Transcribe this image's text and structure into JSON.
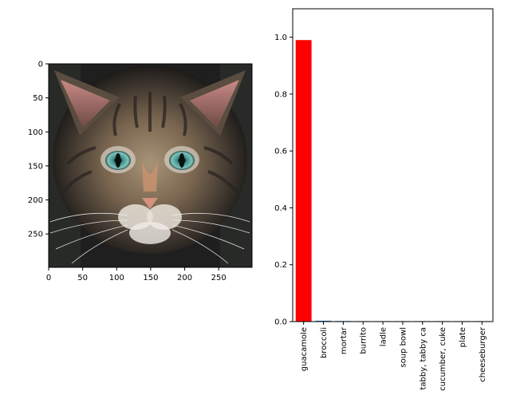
{
  "chart_data": [
    {
      "type": "image",
      "subject": "tabby cat face, symmetric frontal view",
      "x_ticks": [
        0,
        50,
        100,
        150,
        200,
        250
      ],
      "y_ticks": [
        0,
        50,
        100,
        150,
        200,
        250
      ],
      "xlim": [
        0,
        299
      ],
      "ylim": [
        299,
        0
      ]
    },
    {
      "type": "bar",
      "categories": [
        "guacamole",
        "broccoli",
        "mortar",
        "burrito",
        "ladle",
        "soup bowl",
        "tabby, tabby ca",
        "cucumber, cuke",
        "plate",
        "cheeseburger"
      ],
      "values": [
        0.99,
        0.003,
        0.002,
        0.0008,
        0.0006,
        0.0005,
        0.0004,
        0.0003,
        0.0002,
        0.0001
      ],
      "bar_colors": [
        "#ff0000",
        "#1f77b4",
        "#1f77b4",
        "#1f77b4",
        "#1f77b4",
        "#1f77b4",
        "#1f77b4",
        "#1f77b4",
        "#1f77b4",
        "#1f77b4"
      ],
      "y_ticks": [
        0.0,
        0.2,
        0.4,
        0.6,
        0.8,
        1.0
      ],
      "ylim": [
        0,
        1.1
      ],
      "title": "",
      "xlabel": "",
      "ylabel": ""
    }
  ]
}
